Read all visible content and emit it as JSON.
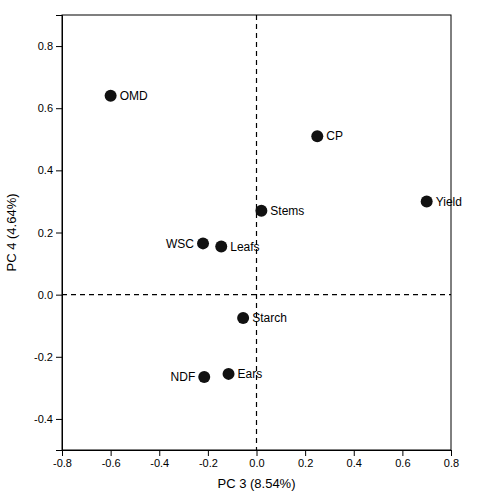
{
  "chart_data": {
    "type": "scatter",
    "x": [
      -0.6,
      0.25,
      0.02,
      0.7,
      -0.22,
      -0.145,
      -0.055,
      -0.215,
      -0.115
    ],
    "values": [
      0.64,
      0.51,
      0.27,
      0.3,
      0.165,
      0.155,
      -0.075,
      -0.265,
      -0.255
    ],
    "labels": [
      "OMD",
      "CP",
      "Stems",
      "Yield",
      "WSC",
      "Leafs",
      "Starch",
      "NDF",
      "Ears"
    ],
    "color": "#111111",
    "xlabel": "PC 3 (8.54%)",
    "ylabel": "PC 4 (4.64%)",
    "xlim": [
      -0.8,
      0.8
    ],
    "ylim": [
      -0.5,
      0.9
    ],
    "xticks": [
      -0.8,
      -0.6,
      -0.4,
      -0.2,
      {
        "value": 0,
        "label": "0.0"
      },
      0.2,
      0.4,
      0.6,
      0.8
    ],
    "yticks": [
      -0.4,
      -0.2,
      {
        "value": 0,
        "label": "0.0"
      },
      0.2,
      0.4,
      0.6,
      0.8
    ],
    "grid": false
  }
}
